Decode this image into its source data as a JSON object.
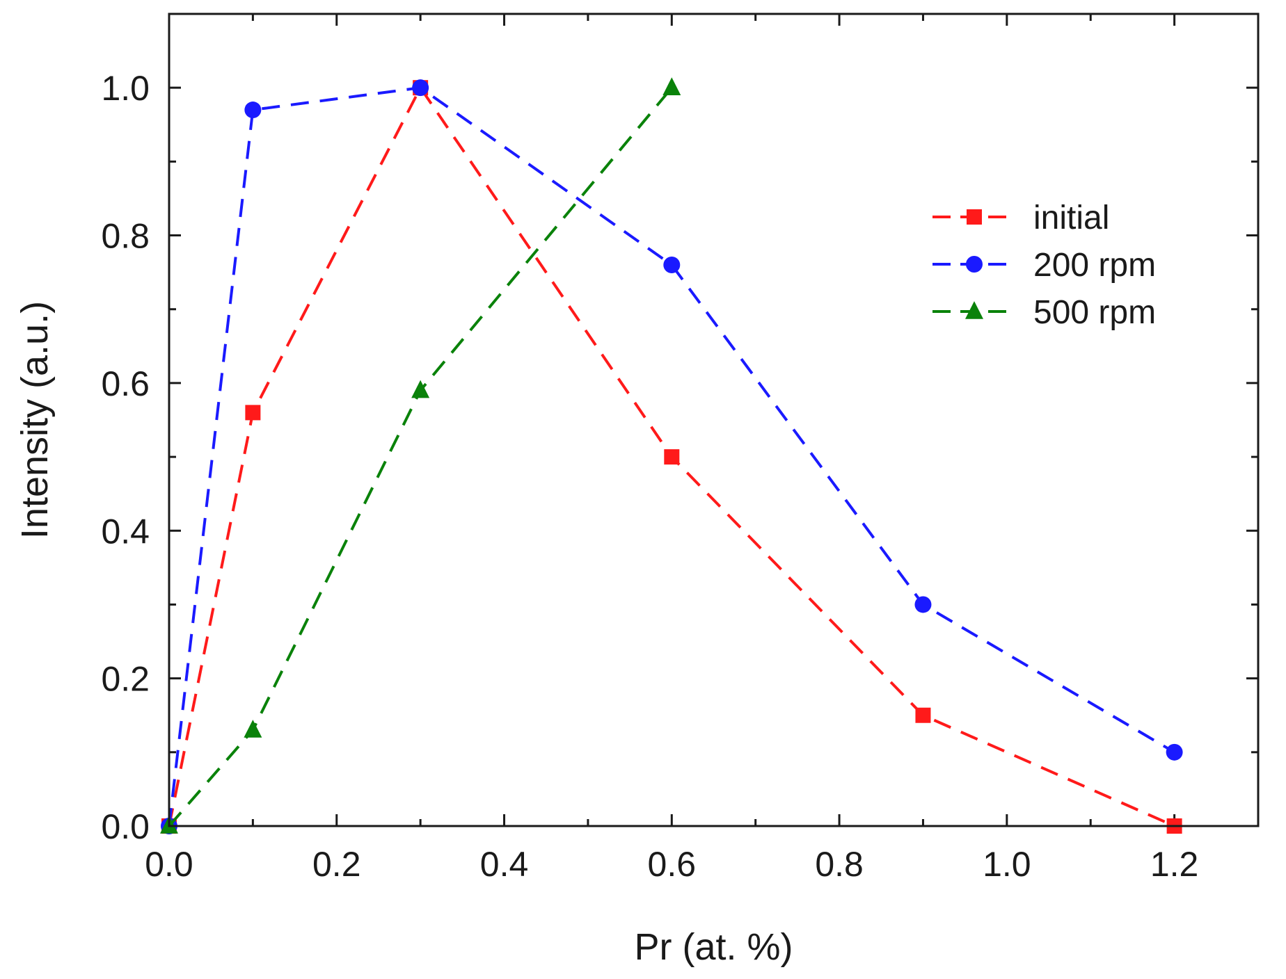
{
  "chart_data": {
    "type": "line",
    "title": "",
    "xlabel": "Pr (at. %)",
    "ylabel": "Intensity (a.u.)",
    "xlim": [
      0,
      1.3
    ],
    "ylim": [
      0,
      1.1
    ],
    "x_ticks": [
      0.0,
      0.2,
      0.4,
      0.6,
      0.8,
      1.0,
      1.2
    ],
    "x_tick_labels": [
      "0.0",
      "0.2",
      "0.4",
      "0.6",
      "0.8",
      "1.0",
      "1.2"
    ],
    "y_ticks": [
      0.0,
      0.2,
      0.4,
      0.6,
      0.8,
      1.0
    ],
    "y_tick_labels": [
      "0.0",
      "0.2",
      "0.4",
      "0.6",
      "0.8",
      "1.0"
    ],
    "x_minor_step": 0.1,
    "y_minor_step": 0.1,
    "grid": false,
    "legend_position": "top-right",
    "series": [
      {
        "name": "initial",
        "color": "#ff1a1a",
        "marker": "square",
        "line_style": "dashed",
        "x": [
          0.0,
          0.1,
          0.3,
          0.6,
          0.9,
          1.2
        ],
        "y": [
          0.0,
          0.56,
          1.0,
          0.5,
          0.15,
          0.0
        ]
      },
      {
        "name": "200 rpm",
        "color": "#1a1aff",
        "marker": "circle",
        "line_style": "dashed",
        "x": [
          0.0,
          0.1,
          0.3,
          0.6,
          0.9,
          1.2
        ],
        "y": [
          0.0,
          0.97,
          1.0,
          0.76,
          0.3,
          0.1
        ]
      },
      {
        "name": "500 rpm",
        "color": "#0a820a",
        "marker": "triangle",
        "line_style": "dashed",
        "x": [
          0.0,
          0.1,
          0.3,
          0.6
        ],
        "y": [
          0.0,
          0.13,
          0.59,
          1.0
        ]
      }
    ]
  }
}
